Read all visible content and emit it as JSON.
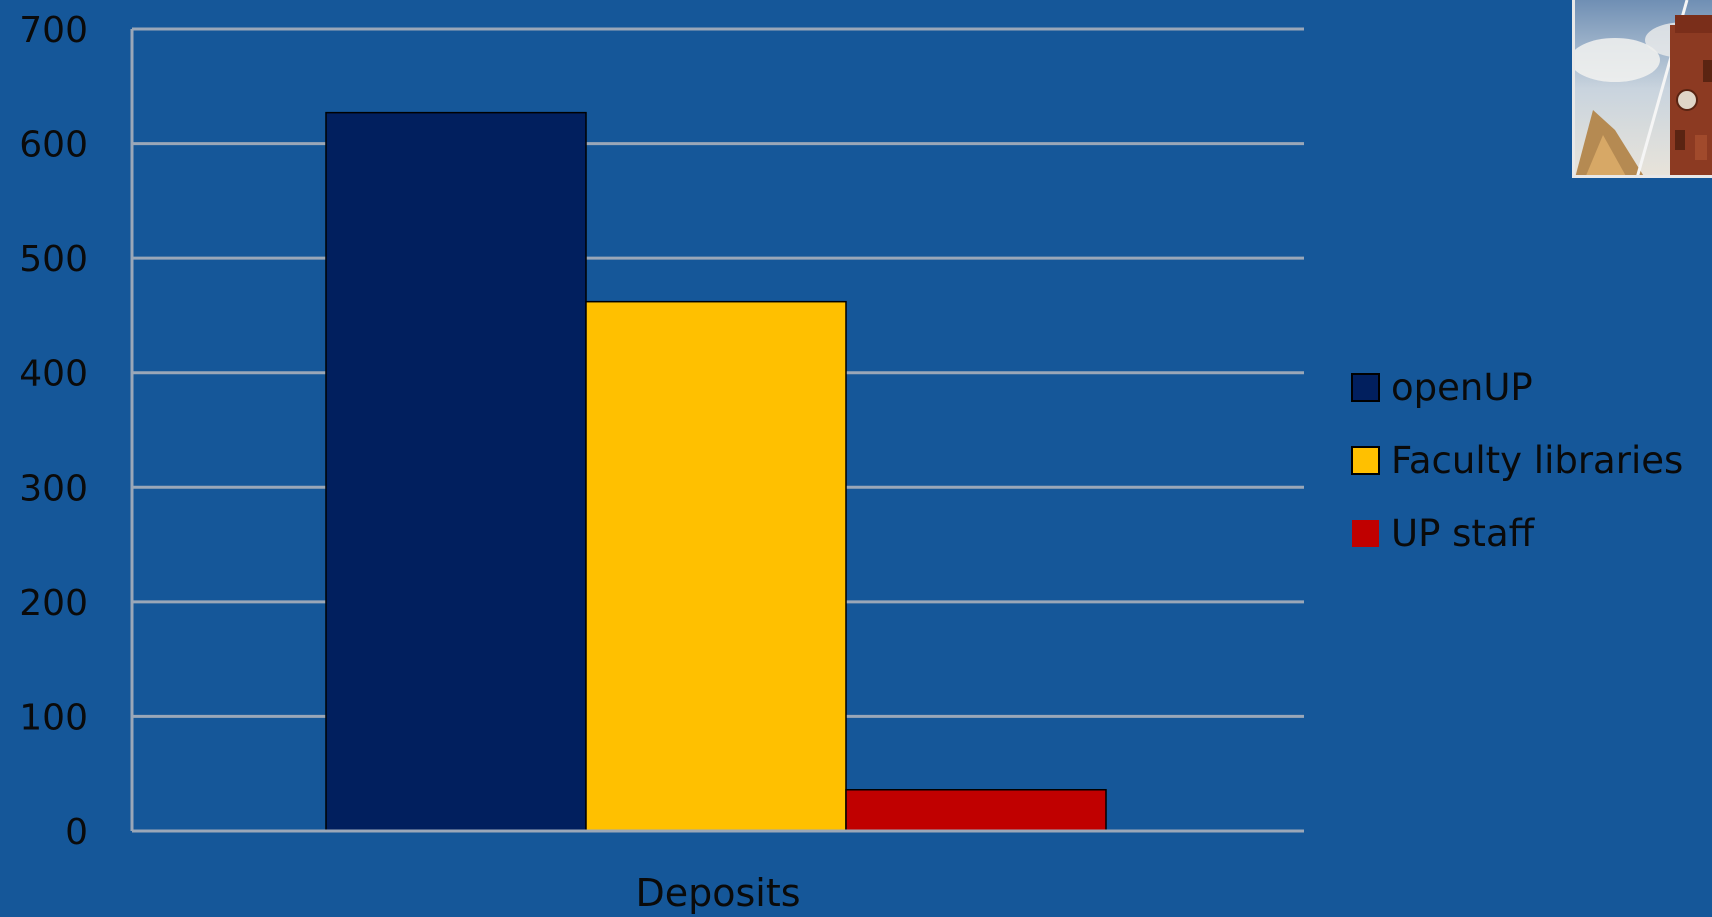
{
  "colors": {
    "background": "#155799",
    "gridline": "#9aa7b8",
    "openUP": "#011f5e",
    "faculty": "#ffc000",
    "staff": "#c00000"
  },
  "thumbnail": {
    "icon": "building-photo-icon"
  },
  "chart_data": {
    "type": "bar",
    "categories": [
      "Deposits"
    ],
    "series": [
      {
        "name": "openUP",
        "values": [
          627
        ]
      },
      {
        "name": "Faculty libraries",
        "values": [
          462
        ]
      },
      {
        "name": "UP staff",
        "values": [
          36
        ]
      }
    ],
    "ylim": [
      0,
      700
    ],
    "yticks": [
      0,
      100,
      200,
      300,
      400,
      500,
      600,
      700
    ],
    "ytick_labels": [
      "0",
      "100",
      "200",
      "300",
      "400",
      "500",
      "600",
      "700"
    ],
    "grid": true,
    "legend": "right",
    "title": "",
    "xlabel": "",
    "ylabel": ""
  }
}
